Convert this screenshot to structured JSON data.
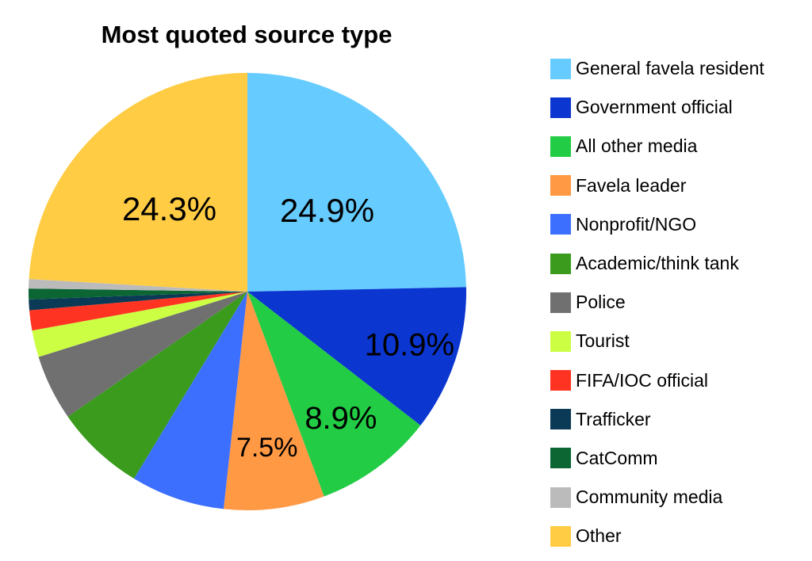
{
  "chart_data": {
    "type": "pie",
    "title": "Most quoted source type",
    "legend_position": "right",
    "start_angle_deg": 0,
    "direction": "clockwise",
    "slices": [
      {
        "label": "General favela resident",
        "value": 24.9,
        "display": "24.9%",
        "color": "#66CCFF"
      },
      {
        "label": "Government official",
        "value": 10.9,
        "display": "10.9%",
        "color": "#0B36D0"
      },
      {
        "label": "All other media",
        "value": 8.9,
        "display": "8.9%",
        "color": "#22CC44"
      },
      {
        "label": "Favela leader",
        "value": 7.5,
        "display": "7.5%",
        "color": "#FF9944"
      },
      {
        "label": "Nonprofit/NGO",
        "value": 7.0,
        "display": "",
        "color": "#3D6FFF"
      },
      {
        "label": "Academic/think tank",
        "value": 6.7,
        "display": "",
        "color": "#3A9B1C"
      },
      {
        "label": "Police",
        "value": 4.9,
        "display": "",
        "color": "#707070"
      },
      {
        "label": "Tourist",
        "value": 2.0,
        "display": "",
        "color": "#CCFF44"
      },
      {
        "label": "FIFA/IOC official",
        "value": 1.5,
        "display": "",
        "color": "#FF3322"
      },
      {
        "label": "Trafficker",
        "value": 0.8,
        "display": "",
        "color": "#0A3A55"
      },
      {
        "label": "CatComm",
        "value": 0.8,
        "display": "",
        "color": "#0C6634"
      },
      {
        "label": "Community media",
        "value": 0.7,
        "display": "",
        "color": "#BBBBBB"
      },
      {
        "label": "Other",
        "value": 24.3,
        "display": "24.3%",
        "color": "#FFCC44"
      }
    ]
  }
}
